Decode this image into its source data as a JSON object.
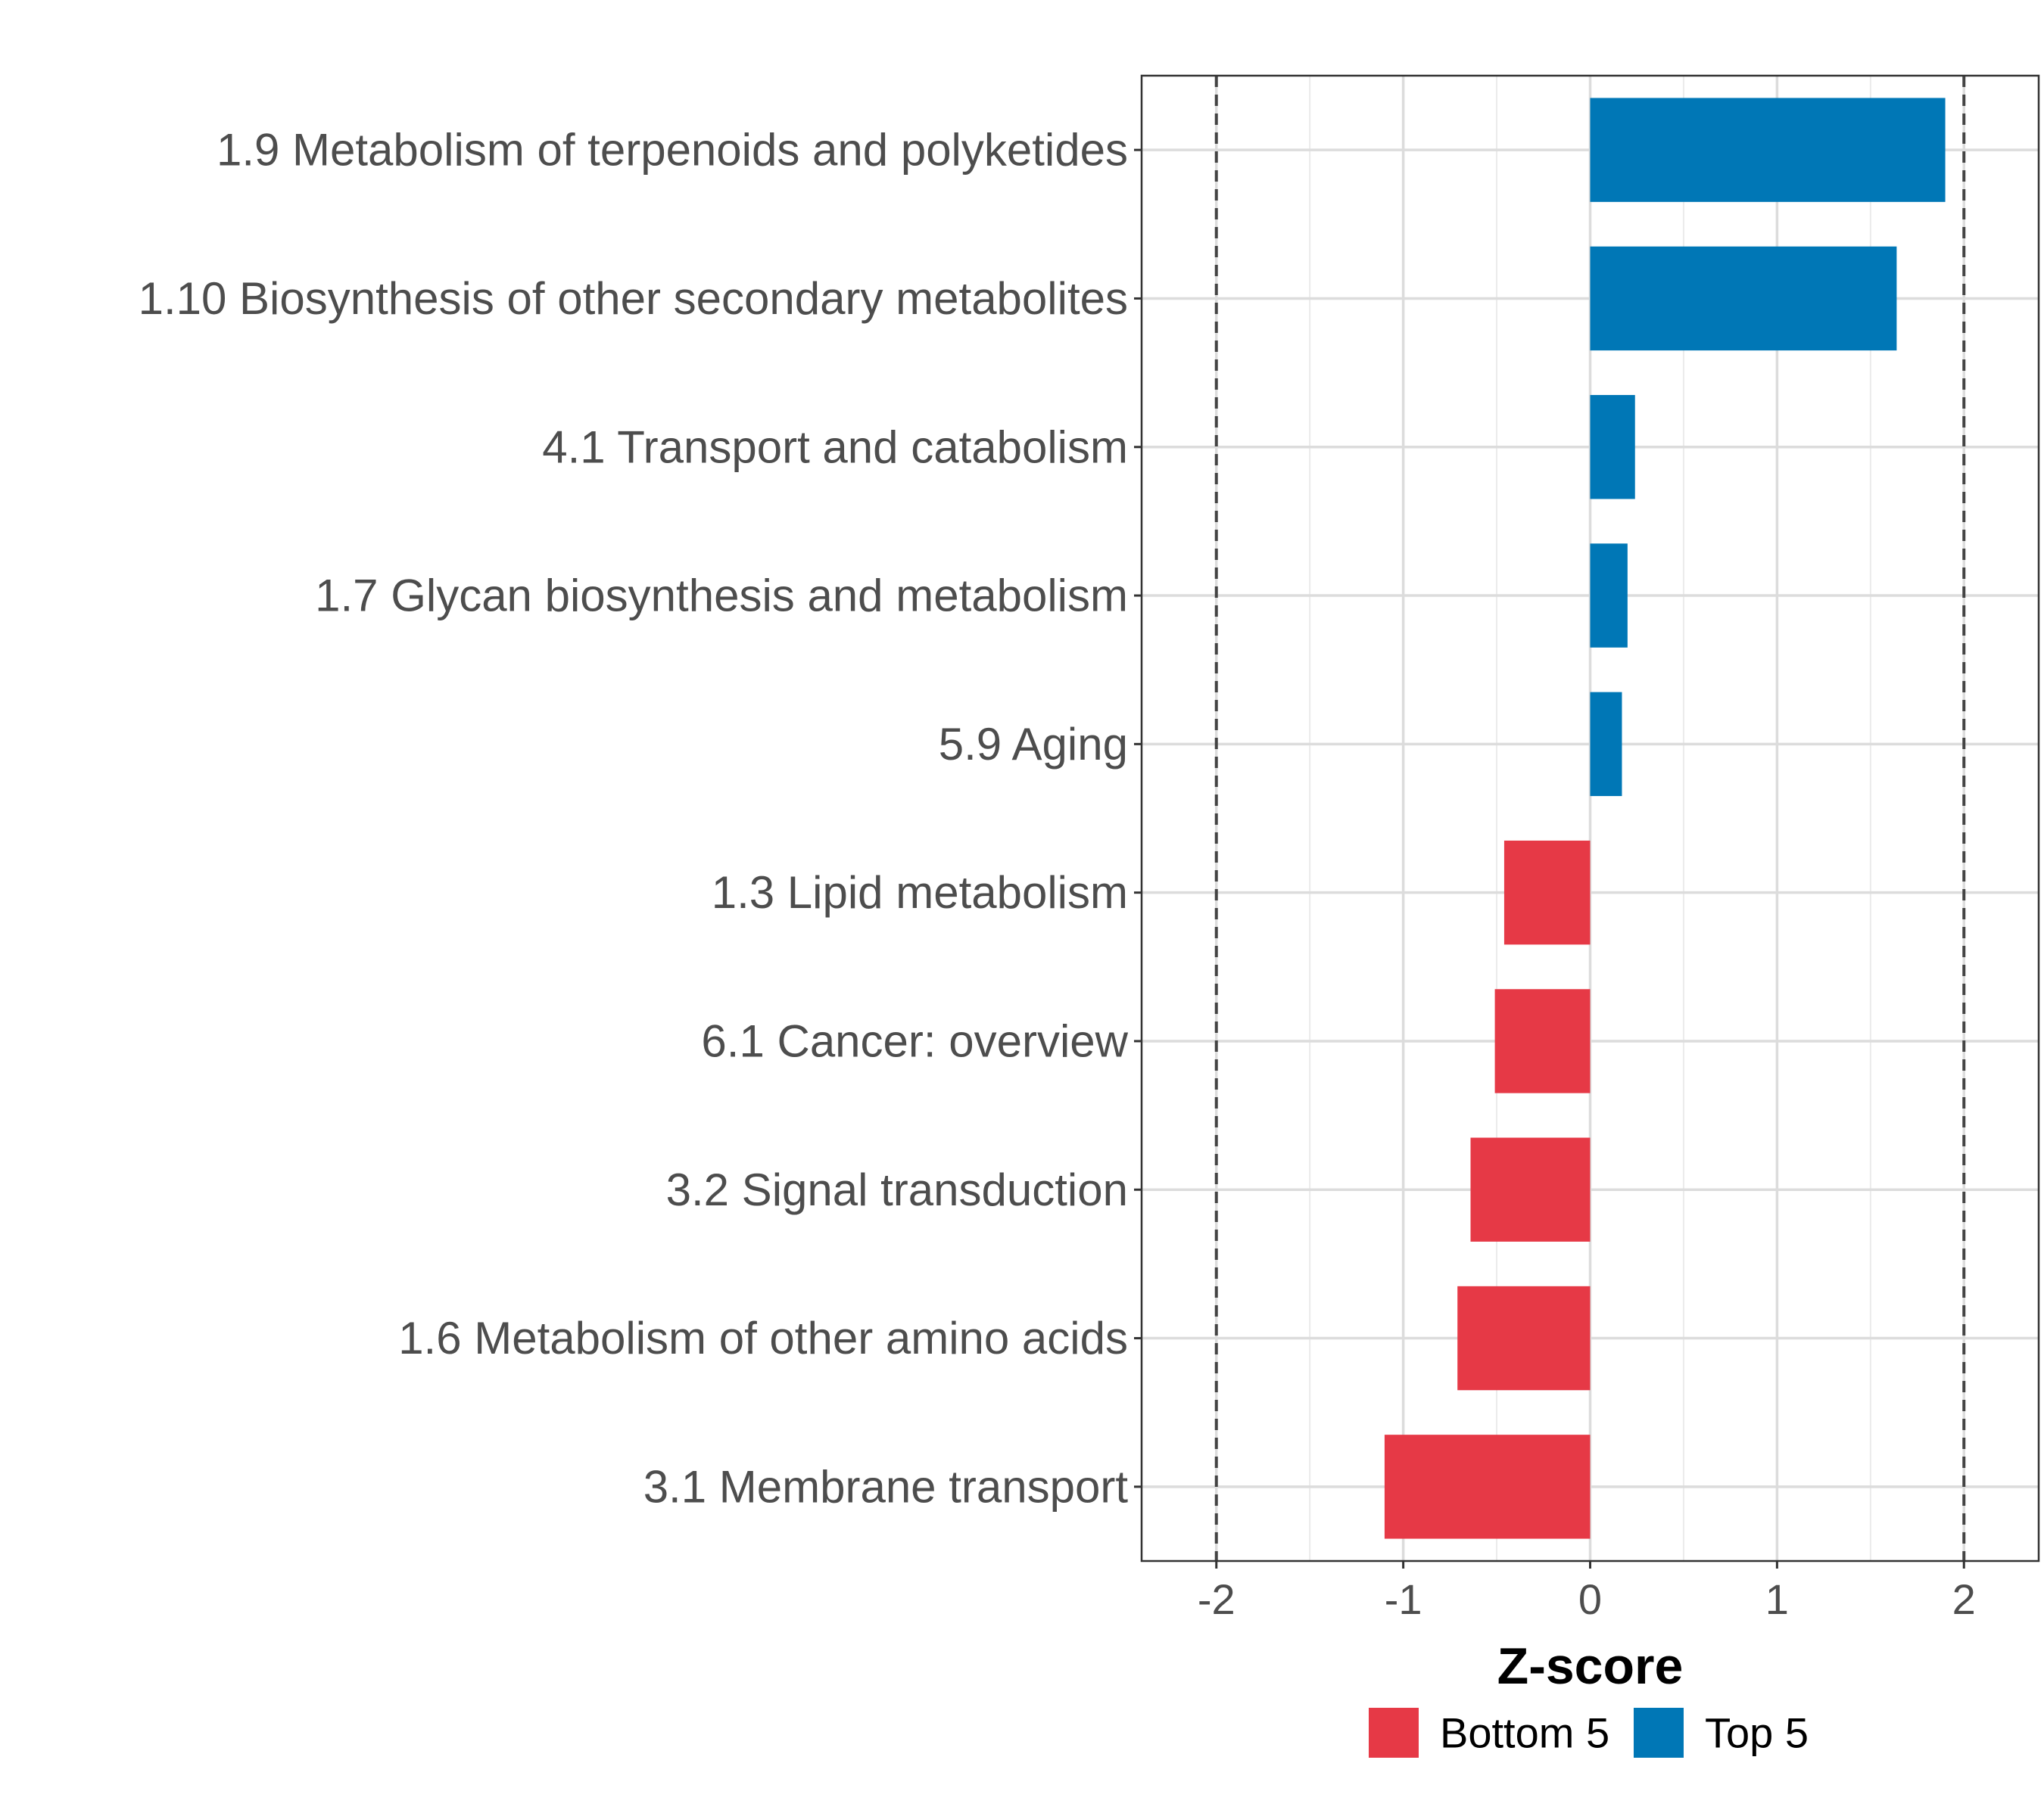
{
  "chart_data": {
    "type": "bar",
    "orientation": "horizontal",
    "title": "",
    "xlabel": "Z-score",
    "ylabel": "",
    "xlim": [
      -2.4,
      2.4
    ],
    "xticks": [
      -2,
      -1,
      0,
      1,
      2
    ],
    "xtick_labels": [
      "-2",
      "-1",
      "0",
      "1",
      "2"
    ],
    "reference_lines": [
      -2,
      2
    ],
    "grid": true,
    "legend_position": "bottom",
    "categories": [
      "1.9 Metabolism of terpenoids and polyketides",
      "1.10 Biosynthesis of other secondary metabolites",
      "4.1 Transport and catabolism",
      "1.7 Glycan biosynthesis and metabolism",
      "5.9 Aging",
      "1.3 Lipid metabolism",
      "6.1 Cancer: overview",
      "3.2 Signal transduction",
      "1.6 Metabolism of other amino acids",
      "3.1 Membrane transport"
    ],
    "values": [
      1.9,
      1.64,
      0.24,
      0.2,
      0.17,
      -0.46,
      -0.51,
      -0.64,
      -0.71,
      -1.1
    ],
    "groups": [
      "Top 5",
      "Top 5",
      "Top 5",
      "Top 5",
      "Top 5",
      "Bottom 5",
      "Bottom 5",
      "Bottom 5",
      "Bottom 5",
      "Bottom 5"
    ],
    "legend": [
      {
        "name": "Bottom 5",
        "color": "#E63946"
      },
      {
        "name": "Top 5",
        "color": "#0077B6"
      }
    ]
  }
}
